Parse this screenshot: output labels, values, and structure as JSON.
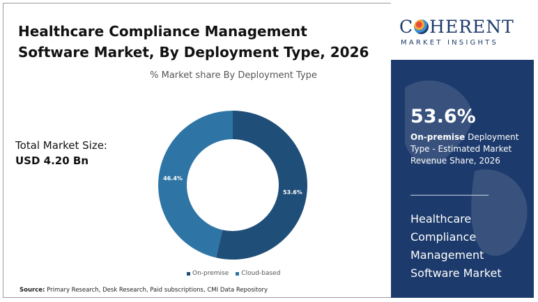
{
  "title": "Healthcare Compliance Management Software Market, By Deployment Type, 2026",
  "market_size": {
    "label": "Total Market Size:",
    "value": "USD 4.20 Bn"
  },
  "source": {
    "label": "Source:",
    "text": " Primary Research, Desk Research, Paid subscriptions, CMI Data Repository"
  },
  "logo": {
    "word_before": "C",
    "word_after": "HERENT",
    "sub": "MARKET INSIGHTS"
  },
  "panel": {
    "stat_value": "53.6%",
    "stat_desc_bold": "On-premise",
    "stat_desc_rest": " Deployment Type - Estimated Market Revenue Share, 2026",
    "market_name": "Healthcare Compliance Management Software Market"
  },
  "colors": {
    "on_premise": "#1f4e79",
    "cloud_based": "#2e75a6",
    "panel": "#1c3a6b"
  },
  "chart_data": {
    "type": "pie",
    "title": "% Market share By Deployment Type",
    "donut": true,
    "categories": [
      "On-premise",
      "Cloud-based"
    ],
    "values": [
      53.6,
      46.4
    ],
    "data_labels": [
      "53.6%",
      "46.4%"
    ],
    "legend": "bottom"
  }
}
